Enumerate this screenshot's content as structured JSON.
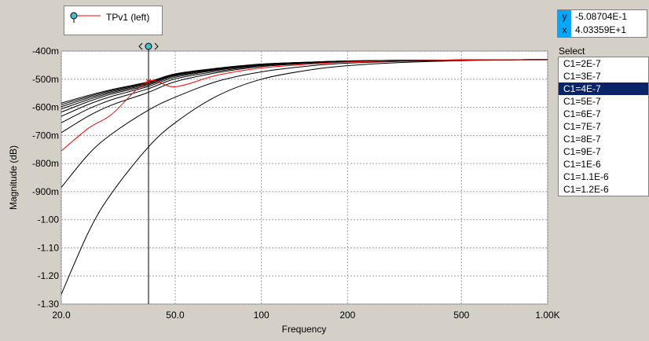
{
  "header": {
    "title_fragment": "TPv1 (left)"
  },
  "legend": {
    "label": "TPv1 (left)",
    "color": "#ff0000",
    "marker_color": "#40c0d0"
  },
  "readout": {
    "y_key": "y",
    "y_value": "-5.08704E-1",
    "x_key": "x",
    "x_value": "4.03359E+1"
  },
  "selector": {
    "title": "Select",
    "items": [
      "C1=2E-7",
      "C1=3E-7",
      "C1=4E-7",
      "C1=5E-7",
      "C1=6E-7",
      "C1=7E-7",
      "C1=8E-7",
      "C1=9E-7",
      "C1=1E-6",
      "C1=1.1E-6",
      "C1=1.2E-6"
    ],
    "selected_index": 2
  },
  "cursor": {
    "x": 40.34,
    "y": -0.5087
  },
  "chart_data": {
    "type": "line",
    "xlabel": "Frequency",
    "ylabel": "Magnitude  (dB)",
    "x_scale": "log",
    "xlim": [
      20,
      1000
    ],
    "ylim": [
      -1.3,
      -0.4
    ],
    "grid": true,
    "x_ticks": [
      20,
      50,
      100,
      200,
      500,
      1000
    ],
    "x_tick_labels": [
      "20.0",
      "50.0",
      "100",
      "200",
      "500",
      "1.00K"
    ],
    "y_ticks": [
      -0.4,
      -0.5,
      -0.6,
      -0.7,
      -0.8,
      -0.9,
      -1.0,
      -1.1,
      -1.2,
      -1.3
    ],
    "y_tick_labels": [
      "-400m",
      "-500m",
      "-600m",
      "-700m",
      "-800m",
      "-900m",
      "-1.00",
      "-1.10",
      "-1.20",
      "-1.30"
    ],
    "x": [
      20,
      25,
      30,
      40,
      50,
      70,
      100,
      150,
      200,
      300,
      500,
      700,
      1000
    ],
    "series": [
      {
        "name": "C1=2E-7",
        "color": "#000000",
        "values": [
          -1.265,
          -1.04,
          -0.905,
          -0.745,
          -0.655,
          -0.56,
          -0.5,
          -0.466,
          -0.452,
          -0.441,
          -0.434,
          -0.432,
          -0.431
        ]
      },
      {
        "name": "C1=3E-7",
        "color": "#000000",
        "values": [
          -0.885,
          -0.765,
          -0.695,
          -0.612,
          -0.564,
          -0.508,
          -0.474,
          -0.452,
          -0.443,
          -0.437,
          -0.433,
          -0.431,
          -0.43
        ]
      },
      {
        "name": "C1=4E-7",
        "color": "#ff0000",
        "values": [
          -0.755,
          -0.673,
          -0.625,
          -0.5087,
          -0.527,
          -0.486,
          -0.46,
          -0.446,
          -0.439,
          -0.435,
          -0.432,
          -0.431,
          -0.43
        ]
      },
      {
        "name": "C1=5E-7",
        "color": "#000000",
        "values": [
          -0.69,
          -0.63,
          -0.592,
          -0.548,
          -0.509,
          -0.477,
          -0.455,
          -0.443,
          -0.438,
          -0.434,
          -0.432,
          -0.431,
          -0.43
        ]
      },
      {
        "name": "C1=6E-7",
        "color": "#000000",
        "values": [
          -0.655,
          -0.605,
          -0.573,
          -0.535,
          -0.499,
          -0.472,
          -0.452,
          -0.442,
          -0.437,
          -0.434,
          -0.432,
          -0.431,
          -0.43
        ]
      },
      {
        "name": "C1=7E-7",
        "color": "#000000",
        "values": [
          -0.632,
          -0.589,
          -0.561,
          -0.527,
          -0.493,
          -0.468,
          -0.45,
          -0.441,
          -0.436,
          -0.434,
          -0.432,
          -0.431,
          -0.43
        ]
      },
      {
        "name": "C1=8E-7",
        "color": "#000000",
        "values": [
          -0.617,
          -0.579,
          -0.553,
          -0.522,
          -0.489,
          -0.466,
          -0.449,
          -0.44,
          -0.436,
          -0.434,
          -0.432,
          -0.431,
          -0.43
        ]
      },
      {
        "name": "C1=9E-7",
        "color": "#000000",
        "values": [
          -0.606,
          -0.572,
          -0.548,
          -0.518,
          -0.486,
          -0.464,
          -0.448,
          -0.44,
          -0.436,
          -0.433,
          -0.432,
          -0.431,
          -0.43
        ]
      },
      {
        "name": "C1=1E-6",
        "color": "#000000",
        "values": [
          -0.598,
          -0.566,
          -0.544,
          -0.515,
          -0.484,
          -0.463,
          -0.447,
          -0.439,
          -0.436,
          -0.433,
          -0.432,
          -0.431,
          -0.43
        ]
      },
      {
        "name": "C1=1.1E-6",
        "color": "#000000",
        "values": [
          -0.591,
          -0.561,
          -0.54,
          -0.512,
          -0.482,
          -0.462,
          -0.447,
          -0.439,
          -0.435,
          -0.433,
          -0.432,
          -0.431,
          -0.43
        ]
      },
      {
        "name": "C1=1.2E-6",
        "color": "#000000",
        "values": [
          -0.585,
          -0.557,
          -0.537,
          -0.51,
          -0.481,
          -0.461,
          -0.446,
          -0.439,
          -0.435,
          -0.433,
          -0.432,
          -0.431,
          -0.43
        ]
      }
    ]
  }
}
